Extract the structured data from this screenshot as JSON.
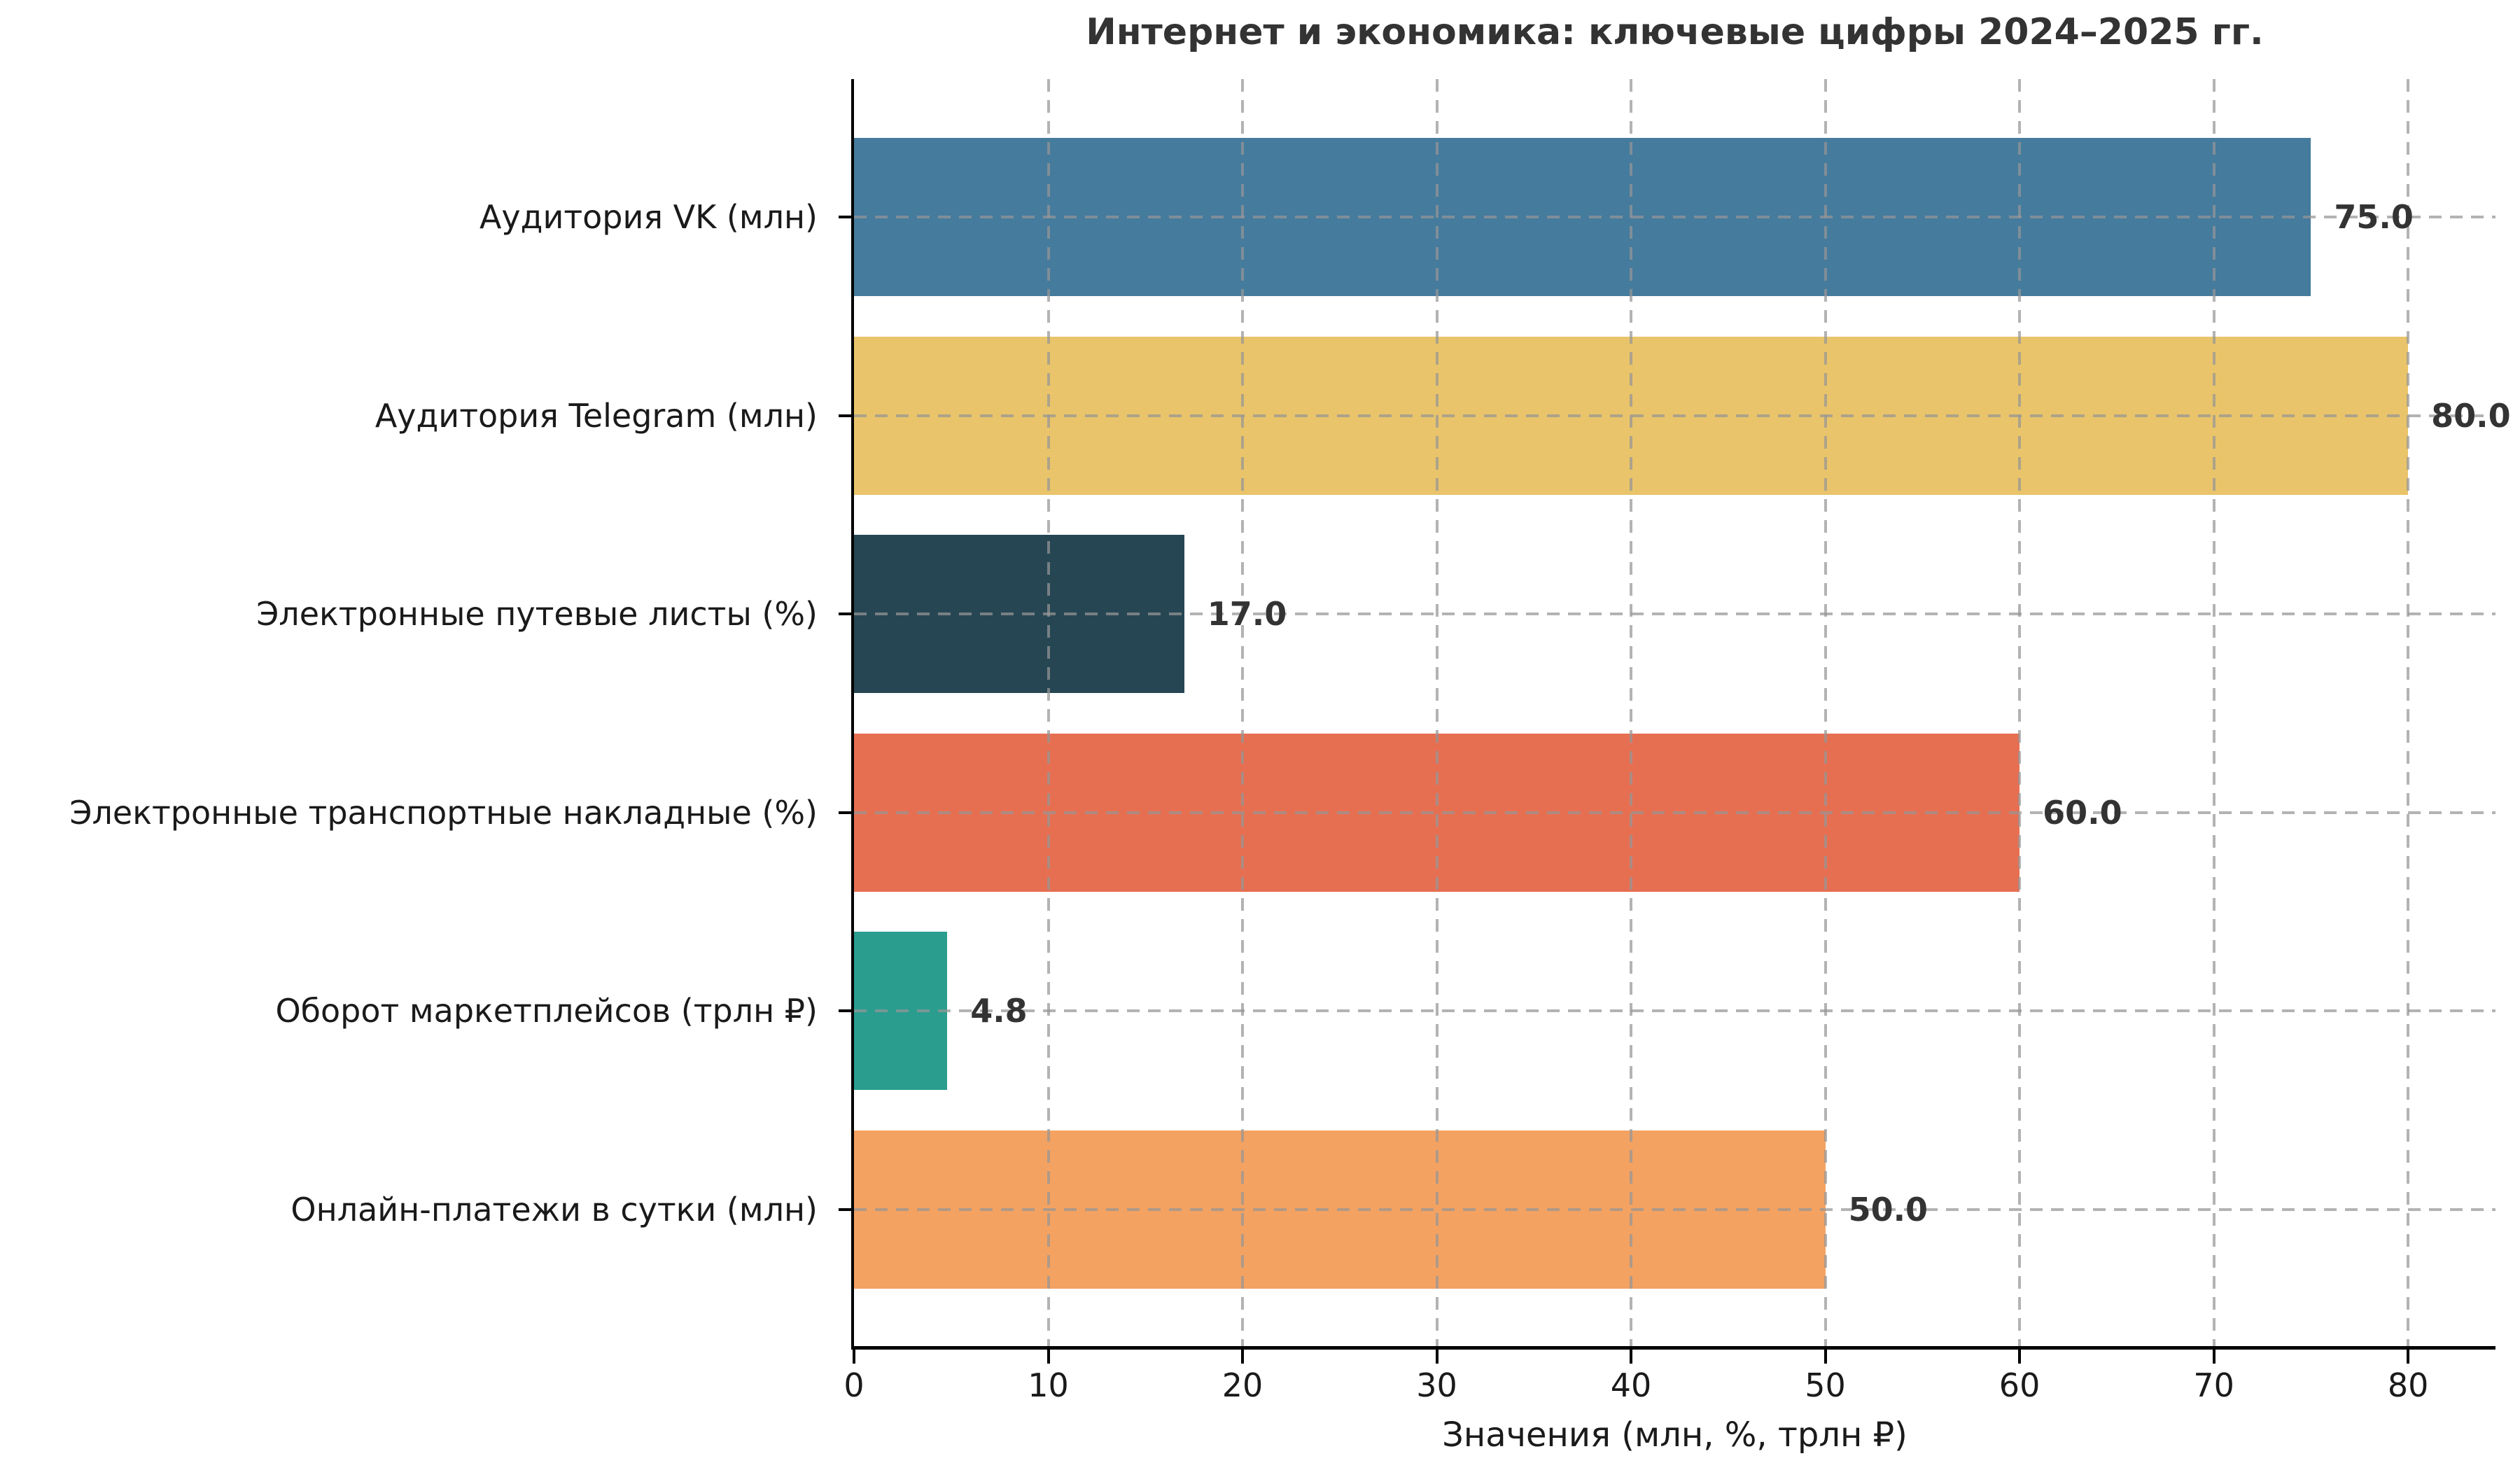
{
  "chart_data": {
    "type": "bar",
    "orientation": "horizontal",
    "title": "Интернет и экономика: ключевые цифры 2024–2025 гг.",
    "xlabel": "Значения (млн, %, трлн ₽)",
    "categories": [
      "Аудитория VK (млн)",
      "Аудитория Telegram (млн)",
      "Электронные путевые листы (%)",
      "Электронные транспортные накладные (%)",
      "Оборот маркетплейсов (трлн ₽)",
      "Онлайн-платежи в сутки (млн)"
    ],
    "values": [
      75.0,
      80.0,
      17.0,
      60.0,
      4.8,
      50.0
    ],
    "value_labels": [
      "75.0",
      "80.0",
      "17.0",
      "60.0",
      "4.8",
      "50.0"
    ],
    "bar_colors": [
      "#457b9d",
      "#e9c46a",
      "#264653",
      "#e76f51",
      "#2a9d8f",
      "#f4a261"
    ],
    "xticks": [
      0,
      10,
      20,
      30,
      40,
      50,
      60,
      70,
      80
    ],
    "xlim": [
      0,
      84.5
    ],
    "grid": {
      "style": "dashed",
      "axes": "both",
      "color": "#a0a0a0"
    },
    "axis_color": "#000000",
    "text_color": "#1a1a1a",
    "value_label_color": "#333333",
    "background": "#ffffff",
    "legend": null
  }
}
